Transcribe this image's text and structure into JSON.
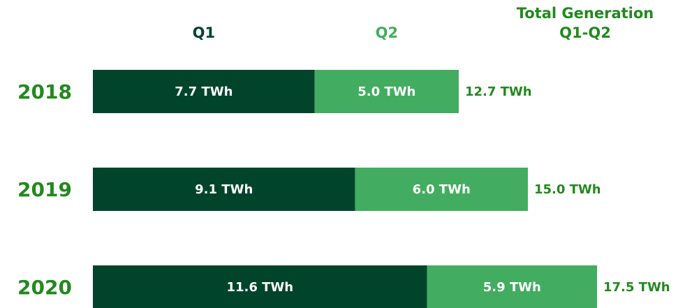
{
  "chart_data": {
    "type": "stacked-bar",
    "categories": [
      "2018",
      "2019",
      "2020"
    ],
    "series": [
      {
        "name": "Q1",
        "color": "#00452b",
        "values": [
          7.7,
          9.1,
          11.6
        ],
        "value_labels": [
          "7.7 TWh",
          "9.1 TWh",
          "11.6 TWh"
        ]
      },
      {
        "name": "Q2",
        "color": "#42ad60",
        "values": [
          5.0,
          6.0,
          5.9
        ],
        "value_labels": [
          "5.0 TWh",
          "6.0 TWh",
          "5.9 TWh"
        ]
      }
    ],
    "totals_header": [
      "Total Generation",
      "Q1-Q2"
    ],
    "totals_color": "#23891f",
    "totals": [
      12.7,
      15.0,
      17.5
    ],
    "total_labels": [
      "12.7 TWh",
      "15.0 TWh",
      "17.5 TWh"
    ]
  }
}
